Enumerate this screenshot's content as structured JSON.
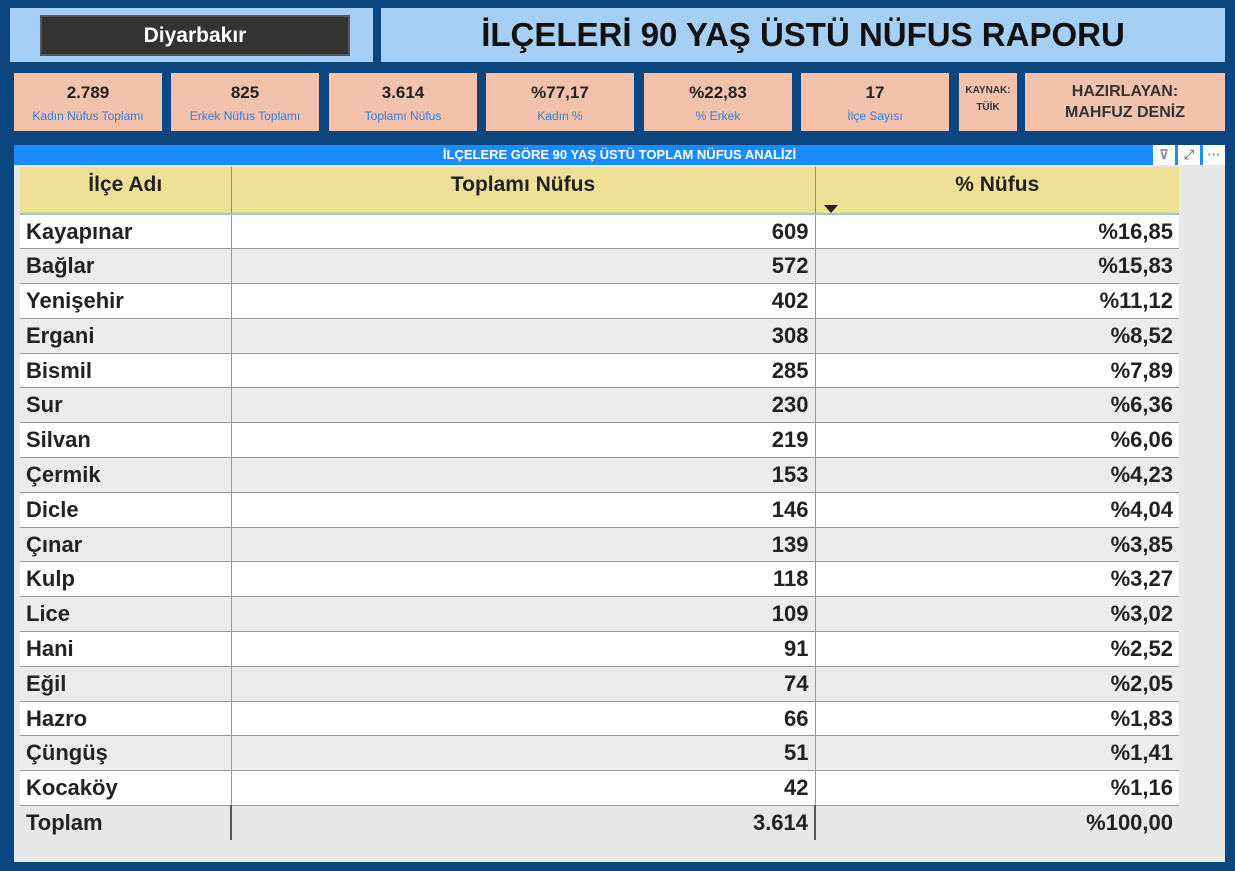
{
  "filter": {
    "city": "Diyarbakır"
  },
  "title": "İLÇELERİ 90 YAŞ ÜSTÜ NÜFUS RAPORU",
  "kpis": [
    {
      "value": "2.789",
      "label": "Kadın Nüfus Toplamı"
    },
    {
      "value": "825",
      "label": "Erkek Nüfus Toplamı"
    },
    {
      "value": "3.614",
      "label": "Toplamı Nüfus"
    },
    {
      "value": "%77,17",
      "label": "Kadın %"
    },
    {
      "value": "%22,83",
      "label": "% Erkek"
    },
    {
      "value": "17",
      "label": "İlçe Sayısı"
    }
  ],
  "source": {
    "label": "KAYNAK:",
    "value": "TÜİK"
  },
  "author": {
    "label": "HAZIRLAYAN:",
    "value": "MAHFUZ DENİZ"
  },
  "table": {
    "title": "İLÇELERE GÖRE 90 YAŞ ÜSTÜ TOPLAM NÜFUS ANALİZİ",
    "columns": [
      "İlçe Adı",
      "Toplamı Nüfus",
      "% Nüfus"
    ],
    "rows": [
      [
        "Kayapınar",
        "609",
        "%16,85"
      ],
      [
        "Bağlar",
        "572",
        "%15,83"
      ],
      [
        "Yenişehir",
        "402",
        "%11,12"
      ],
      [
        "Ergani",
        "308",
        "%8,52"
      ],
      [
        "Bismil",
        "285",
        "%7,89"
      ],
      [
        "Sur",
        "230",
        "%6,36"
      ],
      [
        "Silvan",
        "219",
        "%6,06"
      ],
      [
        "Çermik",
        "153",
        "%4,23"
      ],
      [
        "Dicle",
        "146",
        "%4,04"
      ],
      [
        "Çınar",
        "139",
        "%3,85"
      ],
      [
        "Kulp",
        "118",
        "%3,27"
      ],
      [
        "Lice",
        "109",
        "%3,02"
      ],
      [
        "Hani",
        "91",
        "%2,52"
      ],
      [
        "Eğil",
        "74",
        "%2,05"
      ],
      [
        "Hazro",
        "66",
        "%1,83"
      ],
      [
        "Çüngüş",
        "51",
        "%1,41"
      ],
      [
        "Kocaköy",
        "42",
        "%1,16"
      ]
    ],
    "total": [
      "Toplam",
      "3.614",
      "%100,00"
    ]
  }
}
